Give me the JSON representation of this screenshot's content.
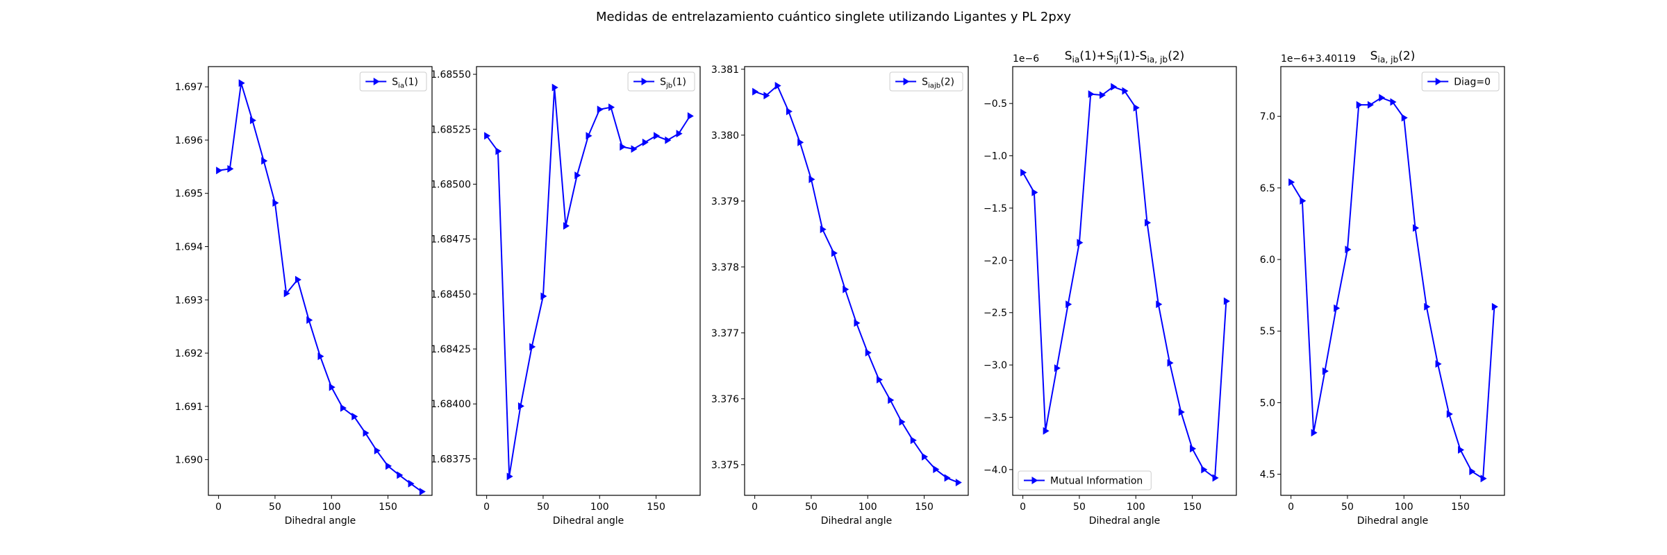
{
  "figure": {
    "suptitle": "Medidas de entrelazamiento cuántico singlete utilizando Ligantes y PL 2pxy",
    "line_color": "#0000ff"
  },
  "chart_data": [
    {
      "type": "line",
      "title": "",
      "xlabel": "Dihedral angle",
      "ylabel": "",
      "xlim": [
        -9,
        189
      ],
      "ylim": [
        1.68933,
        1.69738
      ],
      "xticks": [
        0,
        50,
        100,
        150
      ],
      "yticks": [
        1.69,
        1.691,
        1.692,
        1.693,
        1.694,
        1.695,
        1.696,
        1.697
      ],
      "ytick_labels": [
        "1.690",
        "1.691",
        "1.692",
        "1.693",
        "1.694",
        "1.695",
        "1.696",
        "1.697"
      ],
      "offset_text": "",
      "legend_loc": "upper right",
      "series": [
        {
          "name": "S_ia(1)",
          "name_parts": [
            [
              "S",
              ""
            ],
            [
              "ia",
              "sub"
            ],
            [
              "(1)",
              ""
            ]
          ],
          "x": [
            0,
            10,
            20,
            30,
            40,
            50,
            60,
            70,
            80,
            90,
            100,
            110,
            120,
            130,
            140,
            150,
            160,
            170,
            180
          ],
          "y": [
            1.69543,
            1.69546,
            1.69707,
            1.69637,
            1.69561,
            1.69482,
            1.69312,
            1.69338,
            1.69262,
            1.69194,
            1.69136,
            1.69097,
            1.69081,
            1.6905,
            1.69017,
            1.68988,
            1.68971,
            1.68955,
            1.6894
          ]
        }
      ]
    },
    {
      "type": "line",
      "title": "",
      "xlabel": "Dihedral angle",
      "ylabel": "",
      "xlim": [
        -9,
        189
      ],
      "ylim": [
        1.683584,
        1.685535
      ],
      "xticks": [
        0,
        50,
        100,
        150
      ],
      "yticks": [
        1.68375,
        1.684,
        1.68425,
        1.6845,
        1.68475,
        1.685,
        1.68525,
        1.6855
      ],
      "ytick_labels": [
        "1.68375",
        "1.68400",
        "1.68425",
        "1.68450",
        "1.68475",
        "1.68500",
        "1.68525",
        "1.68550"
      ],
      "offset_text": "",
      "legend_loc": "upper right",
      "series": [
        {
          "name": "S_jb(1)",
          "name_parts": [
            [
              "S",
              ""
            ],
            [
              "jb",
              "sub"
            ],
            [
              "(1)",
              ""
            ]
          ],
          "x": [
            0,
            10,
            20,
            30,
            40,
            50,
            60,
            70,
            80,
            90,
            100,
            110,
            120,
            130,
            140,
            150,
            160,
            170,
            180
          ],
          "y": [
            1.68522,
            1.68515,
            1.68367,
            1.68399,
            1.68426,
            1.68449,
            1.68544,
            1.68481,
            1.68504,
            1.68522,
            1.68534,
            1.68535,
            1.68517,
            1.68516,
            1.68519,
            1.68522,
            1.6852,
            1.68523,
            1.68531
          ]
        }
      ]
    },
    {
      "type": "line",
      "title": "",
      "xlabel": "Dihedral angle",
      "ylabel": "",
      "xlim": [
        -9,
        189
      ],
      "ylim": [
        3.374535,
        3.38104
      ],
      "xticks": [
        0,
        50,
        100,
        150
      ],
      "yticks": [
        3.375,
        3.376,
        3.377,
        3.378,
        3.379,
        3.38,
        3.381
      ],
      "ytick_labels": [
        "3.375",
        "3.376",
        "3.377",
        "3.378",
        "3.379",
        "3.380",
        "3.381"
      ],
      "offset_text": "",
      "legend_loc": "upper right",
      "series": [
        {
          "name": "S_iajb(2)",
          "name_parts": [
            [
              "S",
              ""
            ],
            [
              "iajb",
              "sub"
            ],
            [
              "(2)",
              ""
            ]
          ],
          "x": [
            0,
            10,
            20,
            30,
            40,
            50,
            60,
            70,
            80,
            90,
            100,
            110,
            120,
            130,
            140,
            150,
            160,
            170,
            180
          ],
          "y": [
            3.38066,
            3.3806,
            3.38075,
            3.38036,
            3.37989,
            3.37933,
            3.37857,
            3.37821,
            3.37766,
            3.37715,
            3.3767,
            3.37629,
            3.37598,
            3.37565,
            3.37537,
            3.37512,
            3.37493,
            3.3748,
            3.37473
          ]
        }
      ]
    },
    {
      "type": "line",
      "title": "S_ia(1)+S_ij(1)-S_ia,jb(2)",
      "title_parts": [
        [
          "S",
          ""
        ],
        [
          "ia",
          "sub"
        ],
        [
          "(1)+",
          ""
        ],
        [
          "S",
          ""
        ],
        [
          "ij",
          "sub"
        ],
        [
          "(1)-",
          ""
        ],
        [
          "S",
          ""
        ],
        [
          "ia, jb",
          "sub"
        ],
        [
          "(2)",
          ""
        ]
      ],
      "xlabel": "Dihedral angle",
      "ylabel": "",
      "xlim": [
        -9,
        189
      ],
      "ylim": [
        -4.2463,
        -0.1472
      ],
      "xticks": [
        0,
        50,
        100,
        150
      ],
      "yticks": [
        -4.0,
        -3.5,
        -3.0,
        -2.5,
        -2.0,
        -1.5,
        -1.0,
        -0.5
      ],
      "ytick_labels": [
        "−4.0",
        "−3.5",
        "−3.0",
        "−2.5",
        "−2.0",
        "−1.5",
        "−1.0",
        "−0.5"
      ],
      "offset_text": "1e−6",
      "legend_loc": "lower left",
      "series": [
        {
          "name": "Mutual Information",
          "name_parts": [
            [
              "Mutual Information",
              ""
            ]
          ],
          "x": [
            0,
            10,
            20,
            30,
            40,
            50,
            60,
            70,
            80,
            90,
            100,
            110,
            120,
            130,
            140,
            150,
            160,
            170,
            180
          ],
          "y": [
            -1.16,
            -1.35,
            -3.63,
            -3.03,
            -2.42,
            -1.83,
            -0.41,
            -0.42,
            -0.34,
            -0.38,
            -0.54,
            -1.64,
            -2.42,
            -2.98,
            -3.45,
            -3.8,
            -4.0,
            -4.08,
            -2.39
          ]
        }
      ]
    },
    {
      "type": "line",
      "title": "S_ia,jb(2)",
      "title_parts": [
        [
          "S",
          ""
        ],
        [
          "ia, jb",
          "sub"
        ],
        [
          "(2)",
          ""
        ]
      ],
      "xlabel": "Dihedral angle",
      "ylabel": "",
      "xlim": [
        -9,
        189
      ],
      "ylim": [
        4.3526,
        7.3474
      ],
      "xticks": [
        0,
        50,
        100,
        150
      ],
      "yticks": [
        4.5,
        5.0,
        5.5,
        6.0,
        6.5,
        7.0
      ],
      "ytick_labels": [
        "4.5",
        "5.0",
        "5.5",
        "6.0",
        "6.5",
        "7.0"
      ],
      "offset_text": "1e−6+3.40119",
      "legend_loc": "upper right",
      "series": [
        {
          "name": "Diag=0",
          "name_parts": [
            [
              "Diag=0",
              ""
            ]
          ],
          "x": [
            0,
            10,
            20,
            30,
            40,
            50,
            60,
            70,
            80,
            90,
            100,
            110,
            120,
            130,
            140,
            150,
            160,
            170,
            180
          ],
          "y": [
            6.54,
            6.41,
            4.79,
            5.22,
            5.66,
            6.07,
            7.08,
            7.08,
            7.13,
            7.1,
            6.99,
            6.22,
            5.67,
            5.27,
            4.92,
            4.67,
            4.52,
            4.47,
            5.67
          ]
        }
      ]
    }
  ]
}
